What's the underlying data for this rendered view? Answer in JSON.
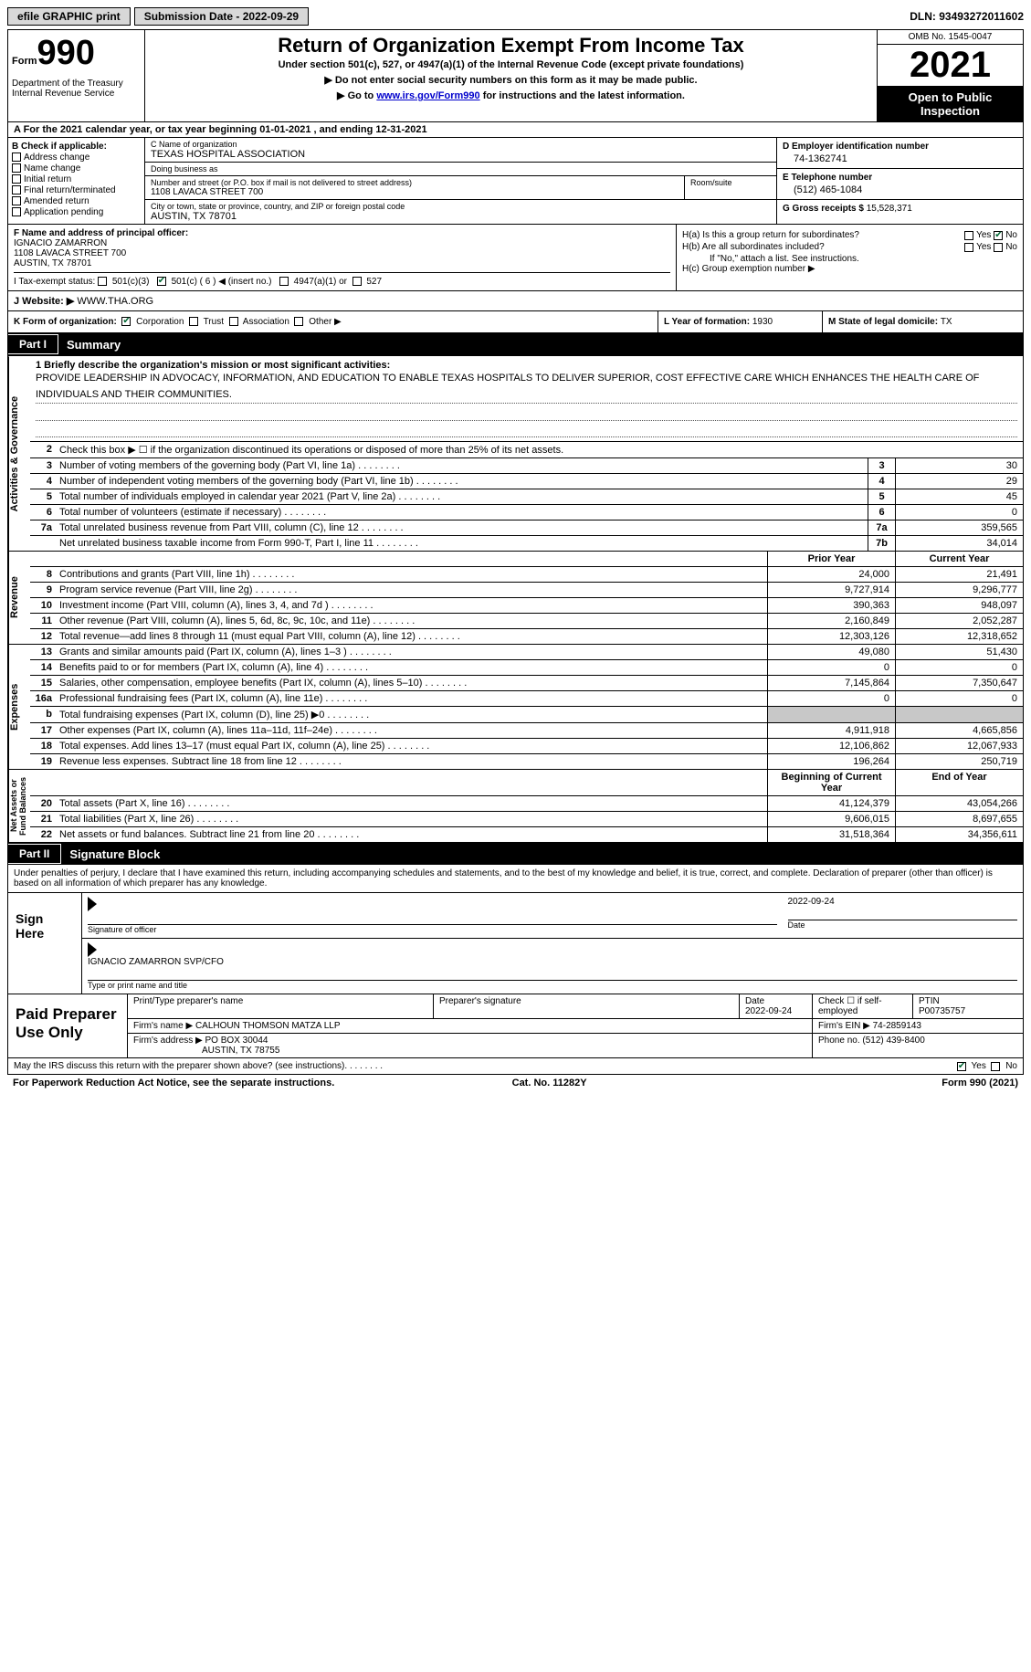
{
  "topbar": {
    "efile": "efile GRAPHIC print",
    "subdate_lbl": "Submission Date - ",
    "subdate": "2022-09-29",
    "dln_lbl": "DLN: ",
    "dln": "93493272011602"
  },
  "header": {
    "form_word": "Form",
    "form_num": "990",
    "dept": "Department of the Treasury\nInternal Revenue Service",
    "title": "Return of Organization Exempt From Income Tax",
    "subtitle": "Under section 501(c), 527, or 4947(a)(1) of the Internal Revenue Code (except private foundations)",
    "note1": "▶ Do not enter social security numbers on this form as it may be made public.",
    "note2_pre": "▶ Go to ",
    "note2_link": "www.irs.gov/Form990",
    "note2_post": " for instructions and the latest information.",
    "omb": "OMB No. 1545-0047",
    "year": "2021",
    "otp": "Open to Public Inspection"
  },
  "row_a": "A  For the 2021 calendar year, or tax year beginning 01-01-2021    , and ending 12-31-2021",
  "col_b": {
    "hdr": "B Check if applicable:",
    "items": [
      "Address change",
      "Name change",
      "Initial return",
      "Final return/terminated",
      "Amended return",
      "Application pending"
    ]
  },
  "col_c": {
    "name_lbl": "C Name of organization",
    "name": "TEXAS HOSPITAL ASSOCIATION",
    "dba_lbl": "Doing business as",
    "dba": "",
    "street_lbl": "Number and street (or P.O. box if mail is not delivered to street address)",
    "street": "1108 LAVACA STREET 700",
    "room_lbl": "Room/suite",
    "city_lbl": "City or town, state or province, country, and ZIP or foreign postal code",
    "city": "AUSTIN, TX  78701"
  },
  "col_d": {
    "ein_lbl": "D Employer identification number",
    "ein": "74-1362741",
    "tel_lbl": "E Telephone number",
    "tel": "(512) 465-1084",
    "gross_lbl": "G Gross receipts $ ",
    "gross": "15,528,371"
  },
  "col_f": {
    "lbl": "F  Name and address of principal officer:",
    "name": "IGNACIO ZAMARRON",
    "addr1": "1108 LAVACA STREET 700",
    "addr2": "AUSTIN, TX   78701"
  },
  "col_h": {
    "a_lbl": "H(a)  Is this a group return for subordinates?",
    "b_lbl": "H(b)  Are all subordinates included?",
    "note": "If \"No,\" attach a list. See instructions.",
    "c_lbl": "H(c)  Group exemption number ▶",
    "yes": "Yes",
    "no": "No"
  },
  "row_i": {
    "lbl": "I   Tax-exempt status:",
    "o1": "501(c)(3)",
    "o2": "501(c) ( 6 ) ◀ (insert no.)",
    "o3": "4947(a)(1) or",
    "o4": "527"
  },
  "row_j": {
    "lbl": "J   Website: ▶  ",
    "val": "WWW.THA.ORG"
  },
  "row_k": {
    "lbl": "K Form of organization:",
    "o1": "Corporation",
    "o2": "Trust",
    "o3": "Association",
    "o4": "Other ▶"
  },
  "row_l": {
    "lbl": "L Year of formation: ",
    "val": "1930"
  },
  "row_m": {
    "lbl": "M State of legal domicile: ",
    "val": "TX"
  },
  "part1": {
    "num": "Part I",
    "title": "Summary"
  },
  "mission": {
    "lbl": "1   Briefly describe the organization's mission or most significant activities:",
    "txt": "PROVIDE LEADERSHIP IN ADVOCACY, INFORMATION, AND EDUCATION TO ENABLE TEXAS HOSPITALS TO DELIVER SUPERIOR, COST EFFECTIVE CARE WHICH ENHANCES THE HEALTH CARE OF INDIVIDUALS AND THEIR COMMUNITIES."
  },
  "vtabs": {
    "ag": "Activities & Governance",
    "rev": "Revenue",
    "exp": "Expenses",
    "na": "Net Assets or\nFund Balances"
  },
  "lines_ag": [
    {
      "n": "2",
      "d": "Check this box ▶ ☐  if the organization discontinued its operations or disposed of more than 25% of its net assets."
    },
    {
      "n": "3",
      "d": "Number of voting members of the governing body (Part VI, line 1a)",
      "b": "3",
      "a": "30"
    },
    {
      "n": "4",
      "d": "Number of independent voting members of the governing body (Part VI, line 1b)",
      "b": "4",
      "a": "29"
    },
    {
      "n": "5",
      "d": "Total number of individuals employed in calendar year 2021 (Part V, line 2a)",
      "b": "5",
      "a": "45"
    },
    {
      "n": "6",
      "d": "Total number of volunteers (estimate if necessary)",
      "b": "6",
      "a": "0"
    },
    {
      "n": "7a",
      "d": "Total unrelated business revenue from Part VIII, column (C), line 12",
      "b": "7a",
      "a": "359,565"
    },
    {
      "n": "",
      "d": "Net unrelated business taxable income from Form 990-T, Part I, line 11",
      "b": "7b",
      "a": "34,014"
    }
  ],
  "rev_hdr": {
    "py": "Prior Year",
    "cy": "Current Year"
  },
  "lines_rev": [
    {
      "n": "8",
      "d": "Contributions and grants (Part VIII, line 1h)",
      "py": "24,000",
      "cy": "21,491"
    },
    {
      "n": "9",
      "d": "Program service revenue (Part VIII, line 2g)",
      "py": "9,727,914",
      "cy": "9,296,777"
    },
    {
      "n": "10",
      "d": "Investment income (Part VIII, column (A), lines 3, 4, and 7d )",
      "py": "390,363",
      "cy": "948,097"
    },
    {
      "n": "11",
      "d": "Other revenue (Part VIII, column (A), lines 5, 6d, 8c, 9c, 10c, and 11e)",
      "py": "2,160,849",
      "cy": "2,052,287"
    },
    {
      "n": "12",
      "d": "Total revenue—add lines 8 through 11 (must equal Part VIII, column (A), line 12)",
      "py": "12,303,126",
      "cy": "12,318,652"
    }
  ],
  "lines_exp": [
    {
      "n": "13",
      "d": "Grants and similar amounts paid (Part IX, column (A), lines 1–3 )",
      "py": "49,080",
      "cy": "51,430"
    },
    {
      "n": "14",
      "d": "Benefits paid to or for members (Part IX, column (A), line 4)",
      "py": "0",
      "cy": "0"
    },
    {
      "n": "15",
      "d": "Salaries, other compensation, employee benefits (Part IX, column (A), lines 5–10)",
      "py": "7,145,864",
      "cy": "7,350,647"
    },
    {
      "n": "16a",
      "d": "Professional fundraising fees (Part IX, column (A), line 11e)",
      "py": "0",
      "cy": "0"
    },
    {
      "n": "b",
      "d": "Total fundraising expenses (Part IX, column (D), line 25) ▶0",
      "py": "",
      "cy": "",
      "shade": true
    },
    {
      "n": "17",
      "d": "Other expenses (Part IX, column (A), lines 11a–11d, 11f–24e)",
      "py": "4,911,918",
      "cy": "4,665,856"
    },
    {
      "n": "18",
      "d": "Total expenses. Add lines 13–17 (must equal Part IX, column (A), line 25)",
      "py": "12,106,862",
      "cy": "12,067,933"
    },
    {
      "n": "19",
      "d": "Revenue less expenses. Subtract line 18 from line 12",
      "py": "196,264",
      "cy": "250,719"
    }
  ],
  "na_hdr": {
    "py": "Beginning of Current Year",
    "cy": "End of Year"
  },
  "lines_na": [
    {
      "n": "20",
      "d": "Total assets (Part X, line 16)",
      "py": "41,124,379",
      "cy": "43,054,266"
    },
    {
      "n": "21",
      "d": "Total liabilities (Part X, line 26)",
      "py": "9,606,015",
      "cy": "8,697,655"
    },
    {
      "n": "22",
      "d": "Net assets or fund balances. Subtract line 21 from line 20",
      "py": "31,518,364",
      "cy": "34,356,611"
    }
  ],
  "part2": {
    "num": "Part II",
    "title": "Signature Block"
  },
  "sig_para": "Under penalties of perjury, I declare that I have examined this return, including accompanying schedules and statements, and to the best of my knowledge and belief, it is true, correct, and complete. Declaration of preparer (other than officer) is based on all information of which preparer has any knowledge.",
  "sign": {
    "here": "Sign Here",
    "sig_lbl": "Signature of officer",
    "date": "2022-09-24",
    "date_lbl": "Date",
    "name": "IGNACIO ZAMARRON SVP/CFO",
    "name_lbl": "Type or print name and title"
  },
  "prep": {
    "hdr": "Paid Preparer Use Only",
    "pname_lbl": "Print/Type preparer's name",
    "psig_lbl": "Preparer's signature",
    "pdate_lbl": "Date",
    "pdate": "2022-09-24",
    "pcheck_lbl": "Check ☐ if self-employed",
    "ptin_lbl": "PTIN",
    "ptin": "P00735757",
    "firm_lbl": "Firm's name     ▶",
    "firm": "CALHOUN THOMSON MATZA LLP",
    "ein_lbl": "Firm's EIN ▶",
    "ein": "74-2859143",
    "addr_lbl": "Firm's address ▶",
    "addr1": "PO BOX 30044",
    "addr2": "AUSTIN, TX  78755",
    "phone_lbl": "Phone no. ",
    "phone": "(512) 439-8400"
  },
  "footer": {
    "q": "May the IRS discuss this return with the preparer shown above? (see instructions)",
    "yes": "Yes",
    "no": "No",
    "pra": "For Paperwork Reduction Act Notice, see the separate instructions.",
    "cat": "Cat. No. 11282Y",
    "form": "Form 990 (2021)"
  }
}
